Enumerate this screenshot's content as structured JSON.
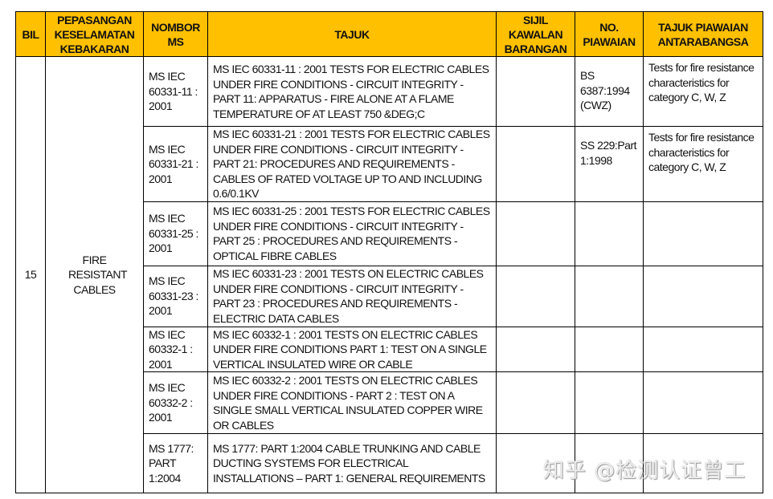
{
  "headers": [
    "BIL",
    "PEPASANGAN KESELAMATAN KEBAKARAN",
    "NOMBOR MS",
    "TAJUK",
    "SIJIL KAWALAN BARANGAN",
    "NO. PIAWAIAN",
    "TAJUK PIAWAIAN ANTARABANGSA"
  ],
  "bil": "15",
  "pepasangan": "FIRE RESISTANT CABLES",
  "rows": [
    {
      "nombor": "MS IEC 60331-11 : 2001",
      "tajuk": "MS IEC 60331-11 : 2001 TESTS FOR ELECTRIC CABLES UNDER FIRE CONDITIONS - CIRCUIT INTEGRITY - PART 11: APPARATUS - FIRE ALONE AT A FLAME TEMPERATURE OF AT LEAST 750 &DEG;C",
      "sijil": "",
      "piawaian": "BS 6387:1994 (CWZ)",
      "antarabangsa": "Tests for fire resistance characteristics for category C, W, Z"
    },
    {
      "nombor": "MS IEC 60331-21 : 2001",
      "tajuk": "MS IEC 60331-21 : 2001 TESTS FOR ELECTRIC CABLES UNDER FIRE CONDITIONS - CIRCUIT INTEGRITY - PART 21: PROCEDURES AND REQUIREMENTS - CABLES OF RATED VOLTAGE UP TO AND INCLUDING 0.6/0.1KV",
      "sijil": "",
      "piawaian": "SS 229:Part 1:1998",
      "antarabangsa": "Tests for fire resistance characteristics for category C, W, Z"
    },
    {
      "nombor": "MS IEC 60331-25 : 2001",
      "tajuk": "MS IEC 60331-25 : 2001 TESTS FOR ELECTRIC CABLES UNDER FIRE CONDITIONS - CIRCUIT INTEGRITY - PART 25 : PROCEDURES AND REQUIREMENTS - OPTICAL FIBRE CABLES",
      "sijil": "",
      "piawaian": "",
      "antarabangsa": ""
    },
    {
      "nombor": "MS IEC 60331-23 : 2001",
      "tajuk": "MS IEC 60331-23 : 2001 TESTS ON ELECTRIC CABLES UNDER FIRE CONDITIONS - CIRCUIT INTEGRITY - PART 23 : PROCEDURES AND REQUIREMENTS - ELECTRIC DATA CABLES",
      "sijil": "",
      "piawaian": "",
      "antarabangsa": ""
    },
    {
      "nombor": "MS IEC 60332-1 : 2001",
      "tajuk": "MS IEC 60332-1 : 2001 TESTS ON ELECTRIC CABLES UNDER FIRE CONDITIONS PART 1: TEST ON A SINGLE VERTICAL INSULATED WIRE OR CABLE",
      "sijil": "",
      "piawaian": "",
      "antarabangsa": ""
    },
    {
      "nombor": "MS IEC 60332-2 : 2001",
      "tajuk": "MS IEC 60332-2 : 2001 TESTS ON ELECTRIC CABLES UNDER FIRE CONDITIONS - PART 2 : TEST ON A SINGLE SMALL VERTICAL INSULATED COPPER WIRE OR CABLES",
      "sijil": "",
      "piawaian": "",
      "antarabangsa": ""
    },
    {
      "nombor": "MS 1777: PART 1:2004",
      "tajuk": "MS 1777: PART 1:2004 CABLE TRUNKING AND CABLE DUCTING SYSTEMS FOR ELECTRICAL INSTALLATIONS – PART 1: GENERAL REQUIREMENTS",
      "sijil": "",
      "piawaian": "",
      "antarabangsa": ""
    }
  ],
  "watermark": "知乎 @检测认证曾工"
}
